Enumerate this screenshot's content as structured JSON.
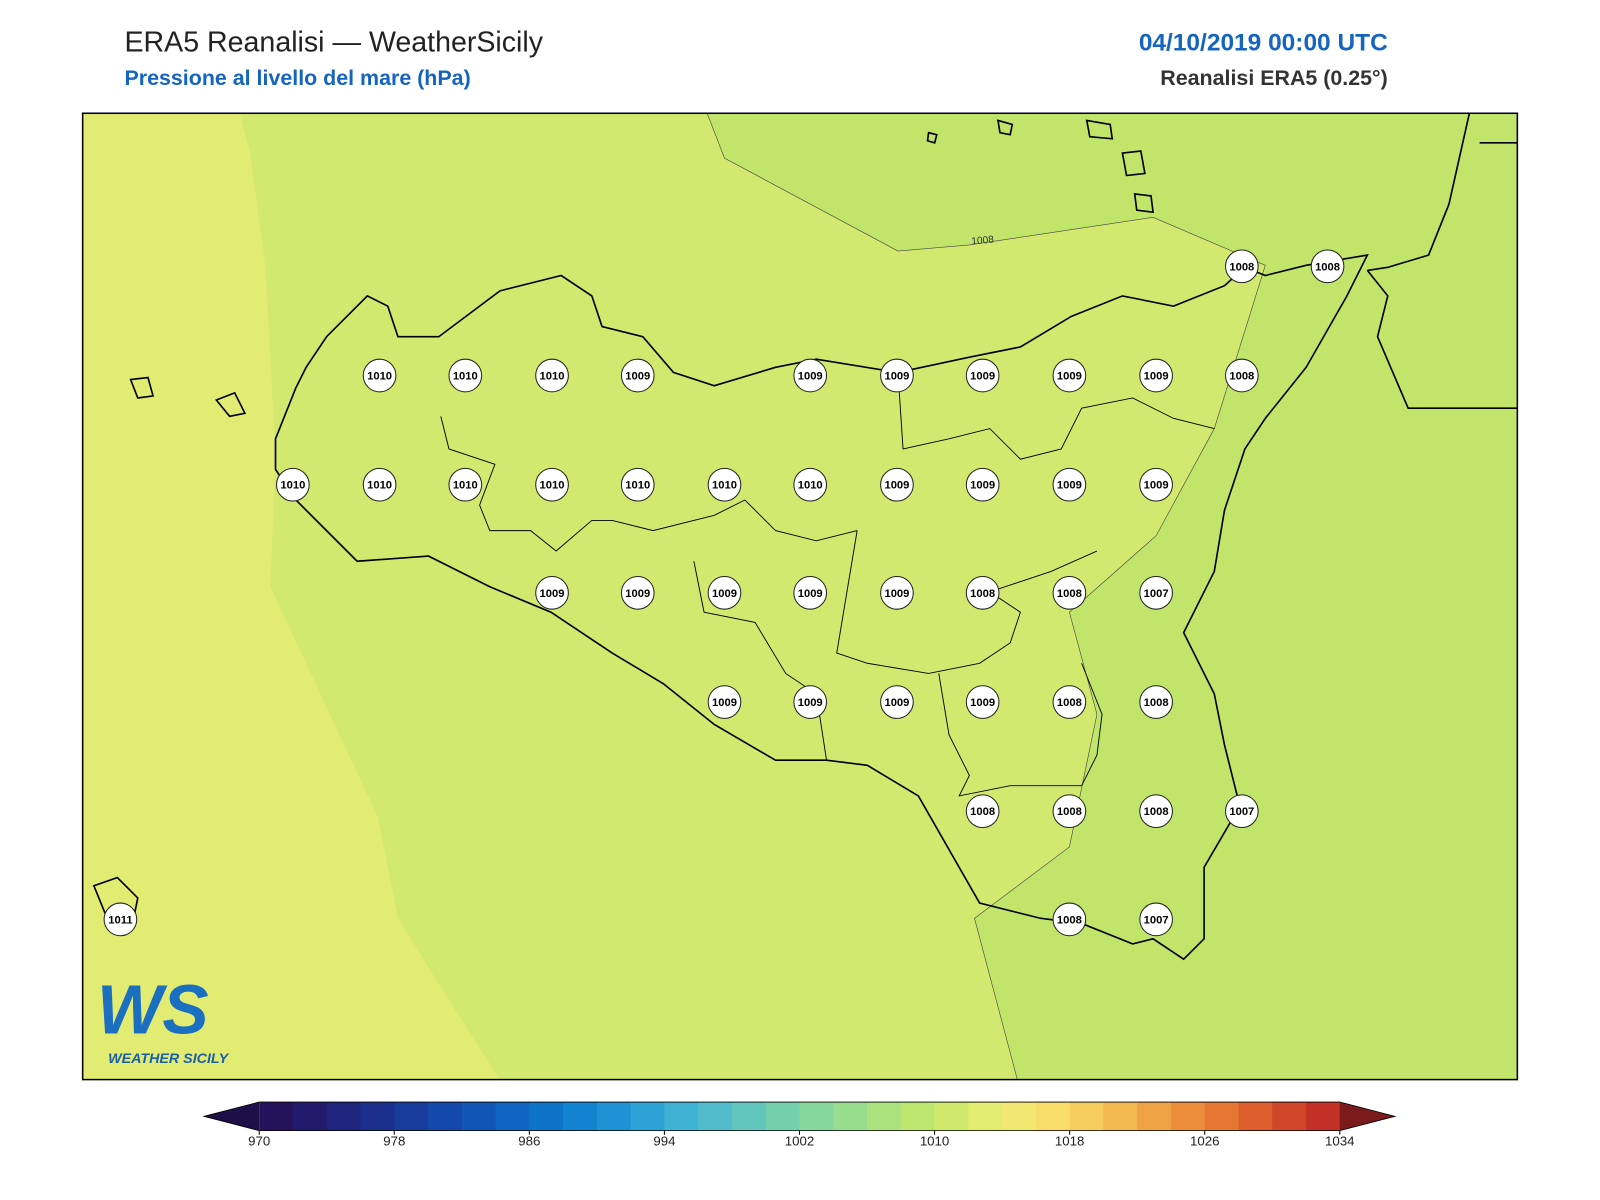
{
  "header": {
    "title": "ERA5 Reanalisi — WeatherSicily",
    "subtitle": "Pressione al livello del mare (hPa)",
    "datetime": "04/10/2019 00:00 UTC",
    "source": "Reanalisi ERA5 (0.25°)"
  },
  "map": {
    "contour_label": 1008,
    "stations": [
      1008,
      1008,
      1010,
      1010,
      1010,
      1009,
      1009,
      1009,
      1009,
      1009,
      1009,
      1008,
      1010,
      1010,
      1010,
      1010,
      1010,
      1010,
      1010,
      1009,
      1009,
      1009,
      1009,
      1009,
      1009,
      1009,
      1009,
      1009,
      1008,
      1008,
      1007,
      1009,
      1009,
      1009,
      1009,
      1008,
      1008,
      1008,
      1008,
      1008,
      1007,
      1011,
      1008,
      1007
    ]
  },
  "colorbar": {
    "range": [
      970,
      1034
    ],
    "ticks": [
      970,
      978,
      986,
      994,
      1002,
      1010,
      1018,
      1026,
      1034
    ],
    "under_color": "#1d1048",
    "over_color": "#7a1a1a",
    "colors": [
      "#24125a",
      "#221a6b",
      "#1f257c",
      "#1b308c",
      "#173c9c",
      "#1449aa",
      "#1156b6",
      "#0e64c0",
      "#0d73c8",
      "#1283cf",
      "#1e93d3",
      "#2da3d5",
      "#3fb1d3",
      "#52bccc",
      "#63c6bd",
      "#74cfad",
      "#86d79e",
      "#98dc8e",
      "#abe27f",
      "#bde66f",
      "#cfe96c",
      "#e1ec70",
      "#f1e873",
      "#f8dd6b",
      "#f6cc5e",
      "#f3b850",
      "#efa344",
      "#eb8d3b",
      "#e57633",
      "#dc5f2d",
      "#cf4629",
      "#c33126"
    ]
  },
  "logo": {
    "text": "WS",
    "caption": "WEATHER SICILY"
  }
}
